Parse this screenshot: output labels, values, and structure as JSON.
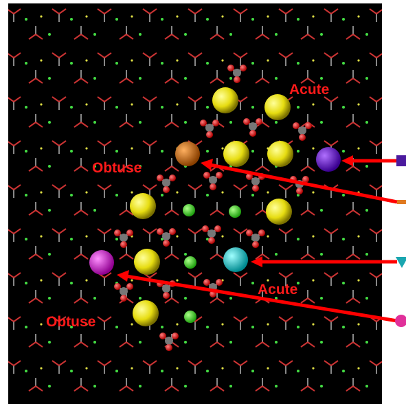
{
  "labels": [
    "Acute",
    "Obtuse",
    "Acute",
    "Obtuse"
  ]
}
